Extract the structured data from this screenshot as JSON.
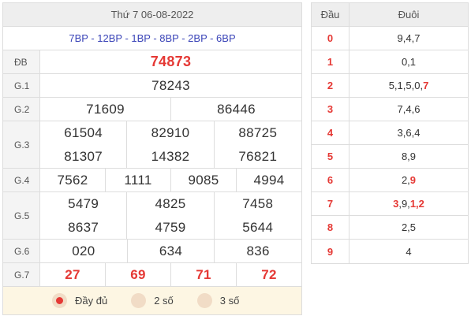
{
  "results": {
    "date": "Thứ 7 06-08-2022",
    "codes": "7BP - 12BP - 1BP - 8BP - 2BP - 6BP",
    "prizes": [
      {
        "label": "ĐB",
        "values": [
          "74873"
        ]
      },
      {
        "label": "G.1",
        "values": [
          "78243"
        ]
      },
      {
        "label": "G.2",
        "values": [
          "71609",
          "86446"
        ]
      },
      {
        "label": "G.3",
        "values": [
          "61504",
          "82910",
          "88725",
          "81307",
          "14382",
          "76821"
        ]
      },
      {
        "label": "G.4",
        "values": [
          "7562",
          "1111",
          "9085",
          "4994"
        ]
      },
      {
        "label": "G.5",
        "values": [
          "5479",
          "4825",
          "7458",
          "8637",
          "4759",
          "5644"
        ]
      },
      {
        "label": "G.6",
        "values": [
          "020",
          "634",
          "836"
        ]
      },
      {
        "label": "G.7",
        "values": [
          "27",
          "69",
          "71",
          "72"
        ]
      }
    ]
  },
  "options": [
    {
      "label": "Đầy đủ",
      "selected": true
    },
    {
      "label": "2 số",
      "selected": false
    },
    {
      "label": "3 số",
      "selected": false
    }
  ],
  "loto": {
    "header_dau": "Đầu",
    "header_duoi": "Đuôi",
    "rows": [
      {
        "dau": "0",
        "duoi_plain": "9,4,7",
        "duoi_red": ""
      },
      {
        "dau": "1",
        "duoi_plain": "0,1",
        "duoi_red": ""
      },
      {
        "dau": "2",
        "duoi_plain": "5,1,5,0,",
        "duoi_red": "7"
      },
      {
        "dau": "3",
        "duoi_plain": "7,4,6",
        "duoi_red": ""
      },
      {
        "dau": "4",
        "duoi_plain": "3,6,4",
        "duoi_red": ""
      },
      {
        "dau": "5",
        "duoi_plain": "8,9",
        "duoi_red": ""
      },
      {
        "dau": "6",
        "duoi_plain": "2,",
        "duoi_red": "9"
      },
      {
        "dau": "7",
        "duoi_plain": "",
        "duoi_red": "3",
        "duoi_mid": ",9,",
        "duoi_red2": "1,2"
      },
      {
        "dau": "8",
        "duoi_plain": "2,5",
        "duoi_red": ""
      },
      {
        "dau": "9",
        "duoi_plain": "4",
        "duoi_red": ""
      }
    ]
  },
  "colors": {
    "accent_red": "#e53935",
    "code_blue": "#3b45b8"
  }
}
